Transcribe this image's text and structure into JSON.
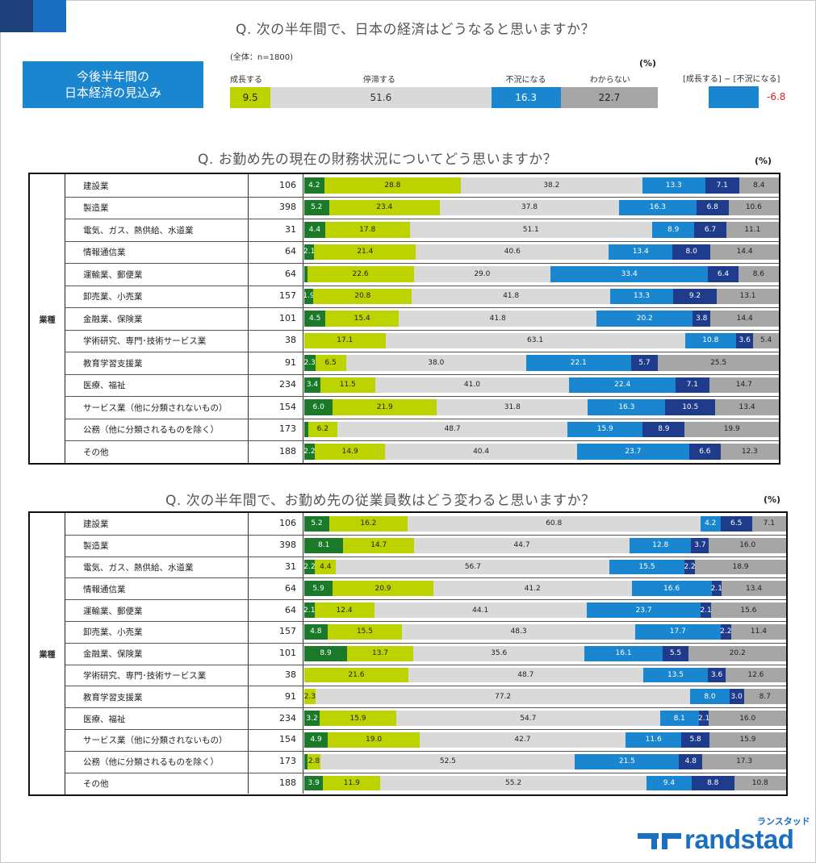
{
  "colors": {
    "grow_strong": "#1a7a2a",
    "grow": "#bcd300",
    "neutral": "#d9d9d9",
    "decline": "#1a86d0",
    "decline_strong": "#1f3b8c",
    "unknown": "#a6a6a6",
    "diff_negative": "#e02020"
  },
  "section1": {
    "question": "Q. 次の半年間で、日本の経済はどうなると思いますか？",
    "box_line1": "今後半年間の",
    "box_line2": "日本経済の見込み",
    "sample": "(全体：n=1800)",
    "unit": "(%)",
    "labels": [
      "成長する",
      "停滞する",
      "不況になる",
      "わからない"
    ],
    "values": [
      9.5,
      51.6,
      16.3,
      22.7
    ],
    "diff_label": "[成長する] − [不況になる]",
    "diff_value": "-6.8"
  },
  "section2": {
    "question": "Q. お勤め先の現在の財務状況についてどう思いますか？",
    "unit": "(%)",
    "category": "業種"
  },
  "section3": {
    "question": "Q. 次の半年間で、お勤め先の従業員数はどう変わると思いますか？",
    "unit": "(%)",
    "category": "業種"
  },
  "chart_data": [
    {
      "type": "bar",
      "title": "Q. 次の半年間で、日本の経済はどうなると思いますか？",
      "categories": [
        "成長する",
        "停滞する",
        "不況になる",
        "わからない"
      ],
      "values": [
        9.5,
        51.6,
        16.3,
        22.7
      ]
    },
    {
      "type": "bar",
      "title": "Q. お勤め先の現在の財務状況についてどう思いますか？",
      "categories": [
        "建設業",
        "製造業",
        "電気、ガス、熱供給、水道業",
        "情報通信業",
        "運輸業、郵便業",
        "卸売業、小売業",
        "金融業、保険業",
        "学術研究、専門･技術サービス業",
        "教育学習支援業",
        "医療、福祉",
        "サービス業（他に分類されないもの）",
        "公務（他に分類されるものを除く）",
        "その他"
      ],
      "n": [
        106,
        398,
        31,
        64,
        64,
        157,
        101,
        38,
        91,
        234,
        154,
        173,
        188
      ],
      "rows": [
        [
          4.2,
          28.8,
          38.2,
          13.3,
          7.1,
          8.4
        ],
        [
          5.2,
          23.4,
          37.8,
          16.3,
          6.8,
          10.6
        ],
        [
          4.4,
          17.8,
          51.1,
          8.9,
          6.7,
          11.1
        ],
        [
          2.1,
          21.4,
          40.6,
          13.4,
          8.0,
          14.4
        ],
        [
          0.6,
          22.6,
          29.0,
          33.4,
          6.4,
          8.6
        ],
        [
          1.9,
          20.8,
          41.8,
          13.3,
          9.2,
          13.1
        ],
        [
          4.5,
          15.4,
          41.8,
          20.2,
          3.8,
          14.4
        ],
        [
          0.0,
          17.1,
          63.1,
          10.8,
          3.6,
          5.4
        ],
        [
          2.3,
          6.5,
          38.0,
          22.1,
          5.7,
          25.5
        ],
        [
          3.4,
          11.5,
          41.0,
          22.4,
          7.1,
          14.7
        ],
        [
          6.0,
          21.9,
          31.8,
          16.3,
          10.5,
          13.4
        ],
        [
          0.8,
          6.2,
          48.7,
          15.9,
          8.9,
          19.9
        ],
        [
          2.2,
          14.9,
          40.4,
          23.7,
          6.6,
          12.3
        ]
      ]
    },
    {
      "type": "bar",
      "title": "Q. 次の半年間で、お勤め先の従業員数はどう変わると思いますか？",
      "categories": [
        "建設業",
        "製造業",
        "電気、ガス、熱供給、水道業",
        "情報通信業",
        "運輸業、郵便業",
        "卸売業、小売業",
        "金融業、保険業",
        "学術研究、専門･技術サービス業",
        "教育学習支援業",
        "医療、福祉",
        "サービス業（他に分類されないもの）",
        "公務（他に分類されるものを除く）",
        "その他"
      ],
      "n": [
        106,
        398,
        31,
        64,
        64,
        157,
        101,
        38,
        91,
        234,
        154,
        173,
        188
      ],
      "rows": [
        [
          5.2,
          16.2,
          60.8,
          4.2,
          6.5,
          7.1
        ],
        [
          8.1,
          14.7,
          44.7,
          12.8,
          3.7,
          16.0
        ],
        [
          2.2,
          4.4,
          56.7,
          15.5,
          2.2,
          18.9
        ],
        [
          5.9,
          20.9,
          41.2,
          16.6,
          2.1,
          13.4
        ],
        [
          2.1,
          12.4,
          44.1,
          23.7,
          2.1,
          15.6
        ],
        [
          4.8,
          15.5,
          48.3,
          17.7,
          2.2,
          11.4
        ],
        [
          8.9,
          13.7,
          35.6,
          16.1,
          5.5,
          20.2
        ],
        [
          0.0,
          21.6,
          48.7,
          13.5,
          3.6,
          12.6
        ],
        [
          0.0,
          2.3,
          77.2,
          8.0,
          3.0,
          8.7
        ],
        [
          3.2,
          15.9,
          54.7,
          8.1,
          2.1,
          16.0
        ],
        [
          4.9,
          19.0,
          42.7,
          11.6,
          5.8,
          15.9
        ],
        [
          0.6,
          2.8,
          52.5,
          21.5,
          4.8,
          17.3
        ],
        [
          3.9,
          11.9,
          55.2,
          9.4,
          8.8,
          10.8
        ]
      ]
    }
  ],
  "logo": {
    "kana": "ランスタッド",
    "word": "randstad"
  }
}
